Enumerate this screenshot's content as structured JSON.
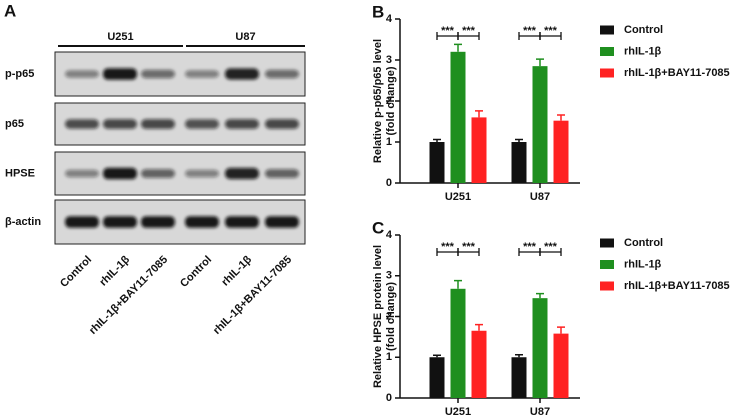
{
  "blot": {
    "panel_label": "A",
    "cell_lines": [
      "U251",
      "U87"
    ],
    "rows": [
      "p-p65",
      "p65",
      "HPSE",
      "β-actin"
    ],
    "lanes": [
      "Control",
      "rhIL-1β",
      "rhIL-1β+BAY11-7085",
      "Control",
      "rhIL-1β",
      "rhIL-1β+BAY11-7085"
    ]
  },
  "chart_data": [
    {
      "type": "bar",
      "panel_label": "B",
      "ylabel": [
        "Relative p-p65/p65 level",
        "(fold change)"
      ],
      "categories": [
        "U251",
        "U87"
      ],
      "series": [
        {
          "name": "Control",
          "color": "#111111",
          "values": [
            1.0,
            1.0
          ],
          "errors": [
            0.06,
            0.06
          ]
        },
        {
          "name": "rhIL-1β",
          "color": "#1f8f1f",
          "values": [
            3.2,
            2.85
          ],
          "errors": [
            0.18,
            0.17
          ]
        },
        {
          "name": "rhIL-1β+BAY11-7085",
          "color": "#ff2222",
          "values": [
            1.6,
            1.52
          ],
          "errors": [
            0.16,
            0.14
          ]
        }
      ],
      "ylim": [
        0,
        4
      ],
      "yticks": [
        0,
        1,
        2,
        3,
        4
      ],
      "annotations": [
        "***",
        "***",
        "***",
        "***"
      ]
    },
    {
      "type": "bar",
      "panel_label": "C",
      "ylabel": [
        "Relative HPSE protein level",
        "(fold change)"
      ],
      "categories": [
        "U251",
        "U87"
      ],
      "series": [
        {
          "name": "Control",
          "color": "#111111",
          "values": [
            1.0,
            1.0
          ],
          "errors": [
            0.05,
            0.06
          ]
        },
        {
          "name": "rhIL-1β",
          "color": "#1f8f1f",
          "values": [
            2.68,
            2.45
          ],
          "errors": [
            0.2,
            0.11
          ]
        },
        {
          "name": "rhIL-1β+BAY11-7085",
          "color": "#ff2222",
          "values": [
            1.65,
            1.58
          ],
          "errors": [
            0.15,
            0.16
          ]
        }
      ],
      "ylim": [
        0,
        4
      ],
      "yticks": [
        0,
        1,
        2,
        3,
        4
      ],
      "annotations": [
        "***",
        "***",
        "***",
        "***"
      ]
    }
  ]
}
